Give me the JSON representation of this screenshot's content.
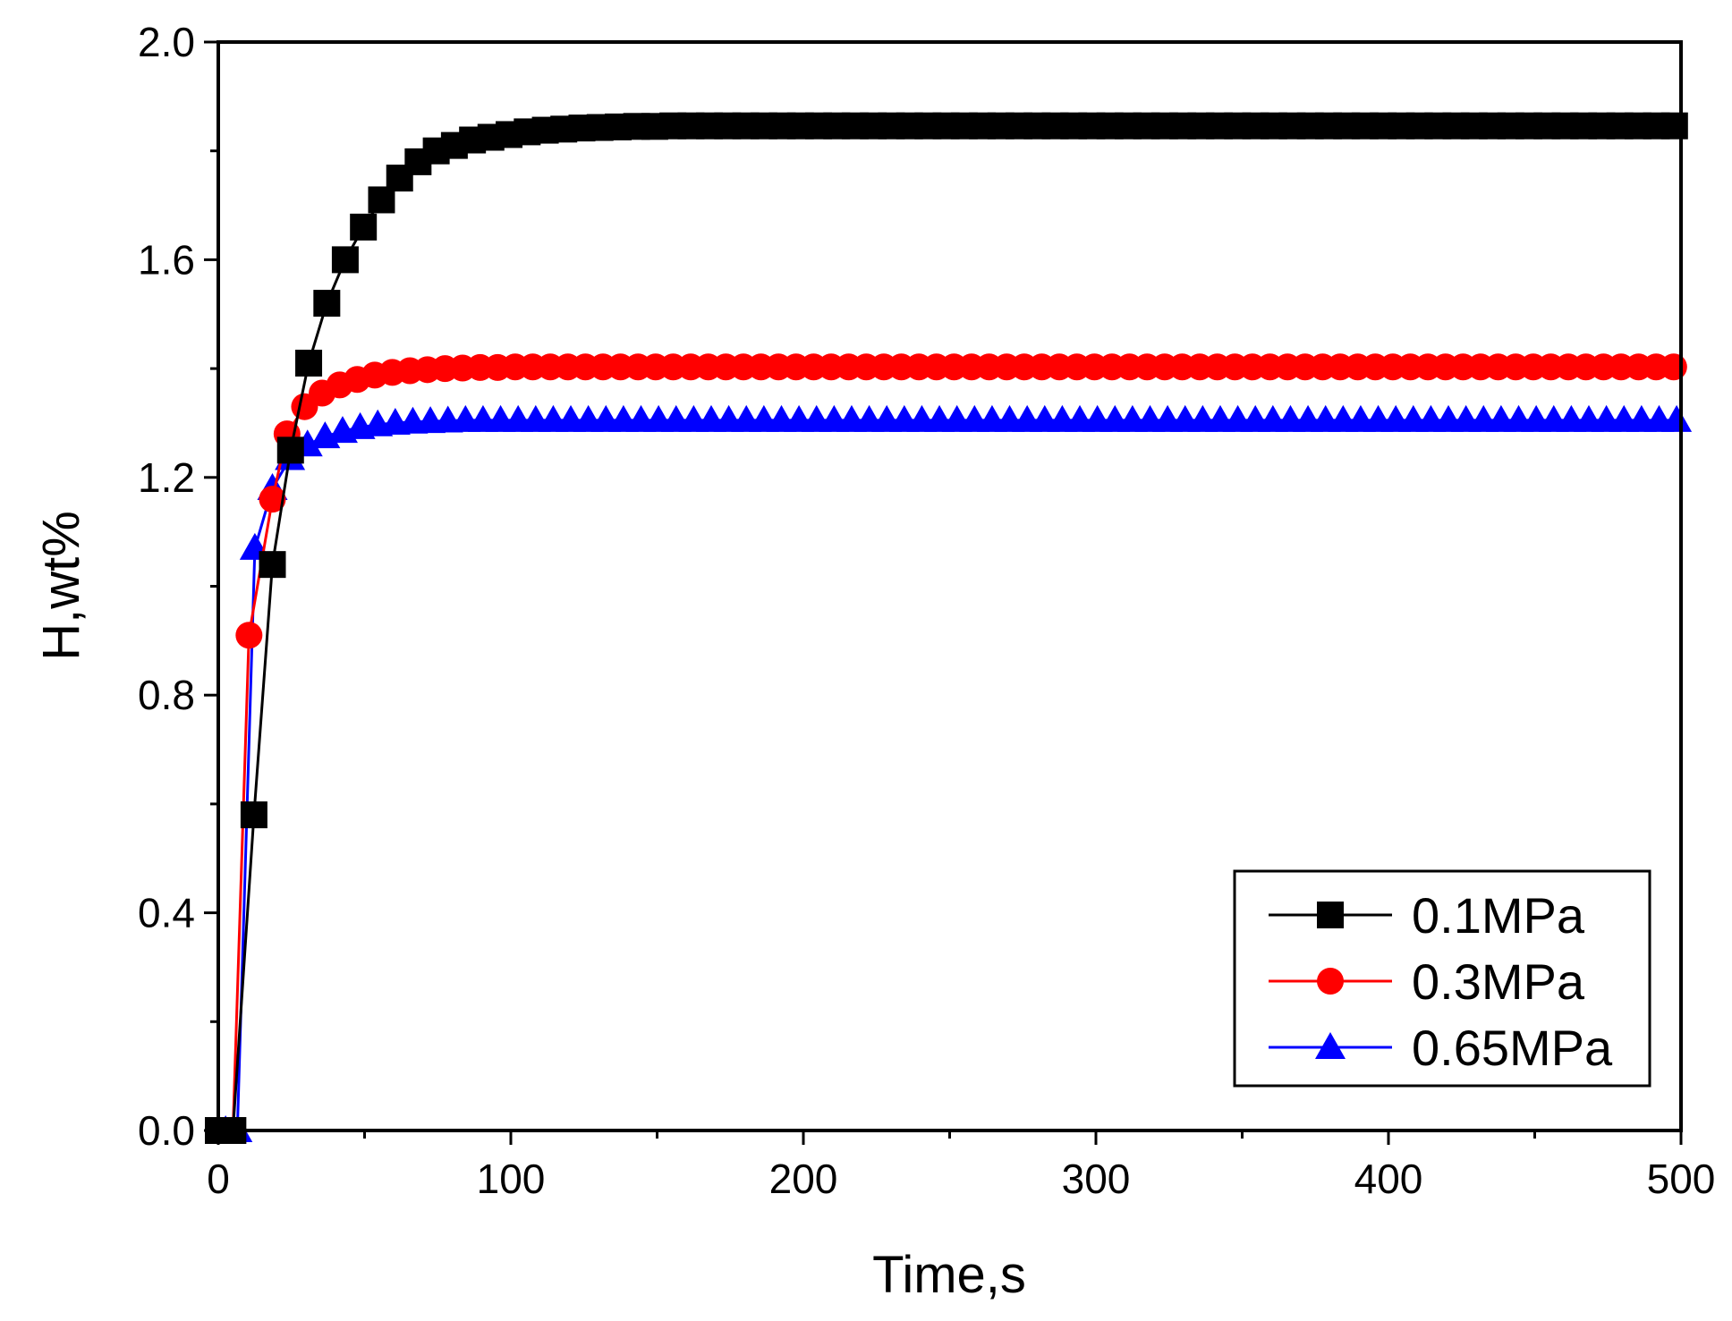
{
  "chart_data": {
    "type": "line",
    "title": "",
    "xlabel": "Time,s",
    "ylabel": "H,wt%",
    "xlim": [
      0,
      500
    ],
    "ylim": [
      0,
      2.0
    ],
    "x_ticks": [
      0,
      100,
      200,
      300,
      400,
      500
    ],
    "x_tick_labels": [
      "0",
      "100",
      "200",
      "300",
      "400",
      "500"
    ],
    "y_ticks": [
      0.0,
      0.4,
      0.8,
      1.2,
      1.6,
      2.0
    ],
    "y_tick_labels": [
      "0.0",
      "0.4",
      "0.8",
      "1.2",
      "1.6",
      "2.0"
    ],
    "grid": false,
    "legend_position": "bottom-right",
    "series": [
      {
        "name": "0.1MPa",
        "color": "#000000",
        "marker": "square",
        "x": [
          0,
          5,
          12.2,
          18.5,
          24.7,
          30.9,
          37.1,
          43.4,
          49.6,
          55.8,
          62.0,
          68.3,
          74.5,
          80.7,
          86.9,
          93.2,
          99.4,
          105.6,
          111.8,
          118.1,
          124.3,
          130.5,
          136.7,
          143.0,
          149.2,
          155.4,
          161.6,
          167.9,
          174.1,
          180.3,
          186.5,
          192.8,
          199.0,
          205.2,
          211.4,
          217.7,
          223.9,
          230.1,
          236.3,
          242.6,
          248.8,
          255.0,
          261.2,
          267.5,
          273.7,
          279.9,
          286.1,
          292.4,
          298.6,
          304.8,
          311.0,
          317.3,
          323.5,
          329.7,
          335.9,
          342.2,
          348.4,
          354.6,
          360.8,
          367.1,
          373.3,
          379.5,
          385.7,
          392.0,
          398.2,
          404.4,
          410.6,
          416.9,
          423.1,
          429.3,
          435.5,
          441.8,
          448.0,
          454.2,
          460.4,
          466.7,
          472.9,
          479.1,
          485.3,
          491.6,
          497.8
        ],
        "y": [
          0.0,
          0.0,
          0.58,
          1.04,
          1.25,
          1.41,
          1.52,
          1.6,
          1.66,
          1.71,
          1.75,
          1.78,
          1.8,
          1.81,
          1.82,
          1.825,
          1.83,
          1.835,
          1.838,
          1.84,
          1.842,
          1.843,
          1.844,
          1.845,
          1.845,
          1.846,
          1.846,
          1.846,
          1.846,
          1.846,
          1.846,
          1.846,
          1.846,
          1.846,
          1.846,
          1.846,
          1.846,
          1.846,
          1.846,
          1.846,
          1.846,
          1.846,
          1.846,
          1.846,
          1.846,
          1.846,
          1.846,
          1.846,
          1.846,
          1.846,
          1.846,
          1.846,
          1.846,
          1.846,
          1.846,
          1.846,
          1.846,
          1.846,
          1.846,
          1.846,
          1.846,
          1.846,
          1.846,
          1.846,
          1.846,
          1.846,
          1.846,
          1.846,
          1.846,
          1.846,
          1.846,
          1.846,
          1.846,
          1.846,
          1.846,
          1.846,
          1.846,
          1.846,
          1.846,
          1.846,
          1.846
        ]
      },
      {
        "name": "0.3MPa",
        "color": "#ff0000",
        "marker": "circle",
        "x": [
          5,
          10.5,
          18.5,
          23.5,
          29.5,
          35.5,
          41.5,
          47.5,
          53.5,
          59.5,
          65.5,
          71.5,
          77.5,
          83.5,
          89.5,
          95.5,
          101.5,
          107.5,
          113.5,
          119.5,
          125.5,
          131.5,
          137.5,
          143.5,
          149.5,
          155.5,
          161.5,
          167.5,
          173.5,
          179.5,
          185.5,
          191.5,
          197.5,
          203.5,
          209.5,
          215.5,
          221.5,
          227.5,
          233.5,
          239.5,
          245.5,
          251.5,
          257.5,
          263.5,
          269.5,
          275.5,
          281.5,
          287.5,
          293.5,
          299.5,
          305.5,
          311.5,
          317.5,
          323.5,
          329.5,
          335.5,
          341.5,
          347.5,
          353.5,
          359.5,
          365.5,
          371.5,
          377.5,
          383.5,
          389.5,
          395.5,
          401.5,
          407.5,
          413.5,
          419.5,
          425.5,
          431.5,
          437.5,
          443.5,
          449.5,
          455.5,
          461.5,
          467.5,
          473.5,
          479.5,
          485.5,
          491.5,
          497.5
        ],
        "y": [
          0.0,
          0.91,
          1.16,
          1.28,
          1.33,
          1.355,
          1.37,
          1.38,
          1.388,
          1.393,
          1.396,
          1.398,
          1.4,
          1.401,
          1.402,
          1.402,
          1.403,
          1.403,
          1.403,
          1.403,
          1.403,
          1.403,
          1.403,
          1.403,
          1.403,
          1.403,
          1.403,
          1.403,
          1.403,
          1.403,
          1.403,
          1.403,
          1.403,
          1.403,
          1.403,
          1.403,
          1.403,
          1.403,
          1.403,
          1.403,
          1.403,
          1.403,
          1.403,
          1.403,
          1.403,
          1.403,
          1.403,
          1.403,
          1.403,
          1.403,
          1.403,
          1.403,
          1.403,
          1.403,
          1.403,
          1.403,
          1.403,
          1.403,
          1.403,
          1.403,
          1.403,
          1.403,
          1.403,
          1.403,
          1.403,
          1.403,
          1.403,
          1.403,
          1.403,
          1.403,
          1.403,
          1.403,
          1.403,
          1.403,
          1.403,
          1.403,
          1.403,
          1.403,
          1.403,
          1.403,
          1.403,
          1.403,
          1.403
        ]
      },
      {
        "name": "0.65MPa",
        "color": "#0000ff",
        "marker": "triangle",
        "x": [
          2.5,
          6.5,
          12.5,
          18.5,
          24.5,
          30.5,
          36.5,
          42.5,
          48.5,
          54.5,
          60.5,
          66.5,
          72.5,
          78.5,
          84.5,
          90.5,
          96.5,
          102.5,
          108.5,
          114.5,
          120.5,
          126.5,
          132.5,
          138.5,
          144.5,
          150.5,
          156.5,
          162.5,
          168.5,
          174.5,
          180.5,
          186.5,
          192.5,
          198.5,
          204.5,
          210.5,
          216.5,
          222.5,
          228.5,
          234.5,
          240.5,
          246.5,
          252.5,
          258.5,
          264.5,
          270.5,
          276.5,
          282.5,
          288.5,
          294.5,
          300.5,
          306.5,
          312.5,
          318.5,
          324.5,
          330.5,
          336.5,
          342.5,
          348.5,
          354.5,
          360.5,
          366.5,
          372.5,
          378.5,
          384.5,
          390.5,
          396.5,
          402.5,
          408.5,
          414.5,
          420.5,
          426.5,
          432.5,
          438.5,
          444.5,
          450.5,
          456.5,
          462.5,
          468.5,
          474.5,
          480.5,
          486.5,
          492.5,
          498.5
        ],
        "y": [
          0.0,
          0.0,
          1.07,
          1.18,
          1.235,
          1.26,
          1.275,
          1.285,
          1.292,
          1.297,
          1.3,
          1.302,
          1.303,
          1.304,
          1.305,
          1.305,
          1.305,
          1.305,
          1.305,
          1.305,
          1.305,
          1.305,
          1.305,
          1.305,
          1.305,
          1.305,
          1.305,
          1.305,
          1.305,
          1.305,
          1.305,
          1.305,
          1.305,
          1.305,
          1.305,
          1.305,
          1.305,
          1.305,
          1.305,
          1.305,
          1.305,
          1.305,
          1.305,
          1.305,
          1.305,
          1.305,
          1.305,
          1.305,
          1.305,
          1.305,
          1.305,
          1.305,
          1.305,
          1.305,
          1.305,
          1.305,
          1.305,
          1.305,
          1.305,
          1.305,
          1.305,
          1.305,
          1.305,
          1.305,
          1.305,
          1.305,
          1.305,
          1.305,
          1.305,
          1.305,
          1.305,
          1.305,
          1.305,
          1.305,
          1.305,
          1.305,
          1.305,
          1.305,
          1.305,
          1.305,
          1.305,
          1.305,
          1.305,
          1.305
        ]
      }
    ]
  }
}
